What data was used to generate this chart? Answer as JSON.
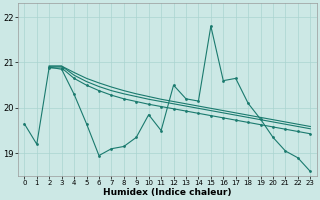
{
  "xlabel": "Humidex (Indice chaleur)",
  "xlim": [
    -0.5,
    23.5
  ],
  "ylim": [
    18.5,
    22.3
  ],
  "yticks": [
    19,
    20,
    21,
    22
  ],
  "xticks": [
    0,
    1,
    2,
    3,
    4,
    5,
    6,
    7,
    8,
    9,
    10,
    11,
    12,
    13,
    14,
    15,
    16,
    17,
    18,
    19,
    20,
    21,
    22,
    23
  ],
  "bg_color": "#cce8e5",
  "grid_color": "#aad4d0",
  "line_color": "#1a7a6e",
  "line1_x": [
    0,
    1,
    2,
    3,
    4,
    5,
    6,
    7,
    8,
    9,
    10,
    11,
    12,
    13,
    14,
    15,
    16,
    17,
    18,
    19,
    20,
    21,
    22,
    23
  ],
  "line1_y": [
    19.65,
    19.2,
    20.9,
    20.85,
    20.3,
    19.65,
    18.95,
    19.1,
    19.15,
    19.35,
    19.85,
    19.5,
    20.5,
    20.2,
    20.15,
    21.8,
    20.6,
    20.65,
    20.1,
    19.75,
    19.35,
    19.05,
    18.9,
    18.6
  ],
  "line2_x": [
    2,
    3,
    4,
    5,
    6,
    7,
    8,
    9,
    10,
    11,
    12,
    13,
    14,
    15,
    16,
    17,
    18,
    19,
    20,
    21,
    22,
    23
  ],
  "line2_y": [
    20.88,
    20.88,
    20.65,
    20.5,
    20.38,
    20.28,
    20.2,
    20.14,
    20.08,
    20.03,
    19.98,
    19.93,
    19.88,
    19.83,
    19.78,
    19.73,
    19.68,
    19.63,
    19.58,
    19.53,
    19.48,
    19.43
  ],
  "line3_x": [
    2,
    3,
    4,
    5,
    6,
    7,
    8,
    9,
    10,
    11,
    12,
    13,
    14,
    15,
    16,
    17,
    18,
    19,
    20,
    21,
    22,
    23
  ],
  "line3_y": [
    20.92,
    20.92,
    20.72,
    20.58,
    20.47,
    20.38,
    20.31,
    20.25,
    20.19,
    20.14,
    20.09,
    20.04,
    19.99,
    19.94,
    19.89,
    19.84,
    19.79,
    19.74,
    19.69,
    19.64,
    19.59,
    19.54
  ],
  "line4_x": [
    2,
    3,
    4,
    5,
    6,
    7,
    8,
    9,
    10,
    11,
    12,
    13,
    14,
    15,
    16,
    17,
    18,
    19,
    20,
    21,
    22,
    23
  ],
  "line4_y": [
    20.92,
    20.92,
    20.78,
    20.65,
    20.55,
    20.46,
    20.38,
    20.31,
    20.25,
    20.19,
    20.14,
    20.09,
    20.04,
    19.99,
    19.94,
    19.89,
    19.84,
    19.79,
    19.74,
    19.69,
    19.64,
    19.59
  ]
}
